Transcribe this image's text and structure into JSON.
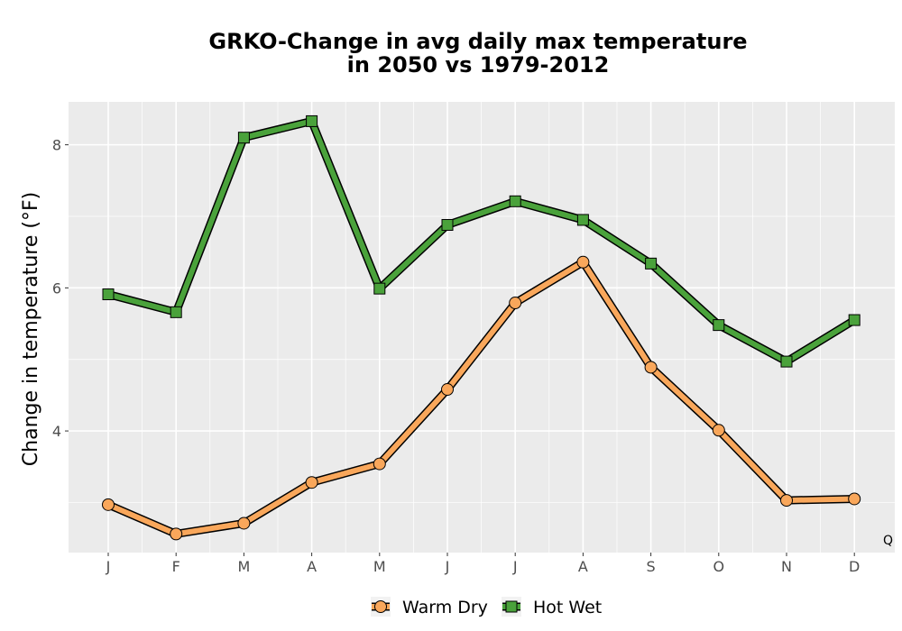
{
  "chart_data": {
    "type": "line",
    "title_line1": "GRKO-Change in avg daily max temperature",
    "title_line2": "in 2050 vs 1979-2012",
    "xlabel": "",
    "ylabel": "Change in temperature (°F)",
    "categories": [
      "J",
      "F",
      "M",
      "A",
      "M",
      "J",
      "J",
      "A",
      "S",
      "O",
      "N",
      "D"
    ],
    "ylim": [
      2.3,
      8.6
    ],
    "yticks": [
      4,
      6,
      8
    ],
    "yticks_minor": [
      3,
      5,
      7
    ],
    "grid": true,
    "legend_position": "bottom",
    "corner_label": "Q",
    "series": [
      {
        "name": "Warm Dry",
        "marker": "circle",
        "color": "#f9a75b",
        "values": [
          2.97,
          2.56,
          2.71,
          3.28,
          3.54,
          4.58,
          5.79,
          6.36,
          4.89,
          4.01,
          3.03,
          3.05
        ]
      },
      {
        "name": "Hot Wet",
        "marker": "square",
        "color": "#4aa23b",
        "values": [
          5.91,
          5.66,
          8.1,
          8.33,
          5.99,
          6.88,
          7.21,
          6.95,
          6.34,
          5.48,
          4.97,
          5.55
        ]
      }
    ]
  }
}
